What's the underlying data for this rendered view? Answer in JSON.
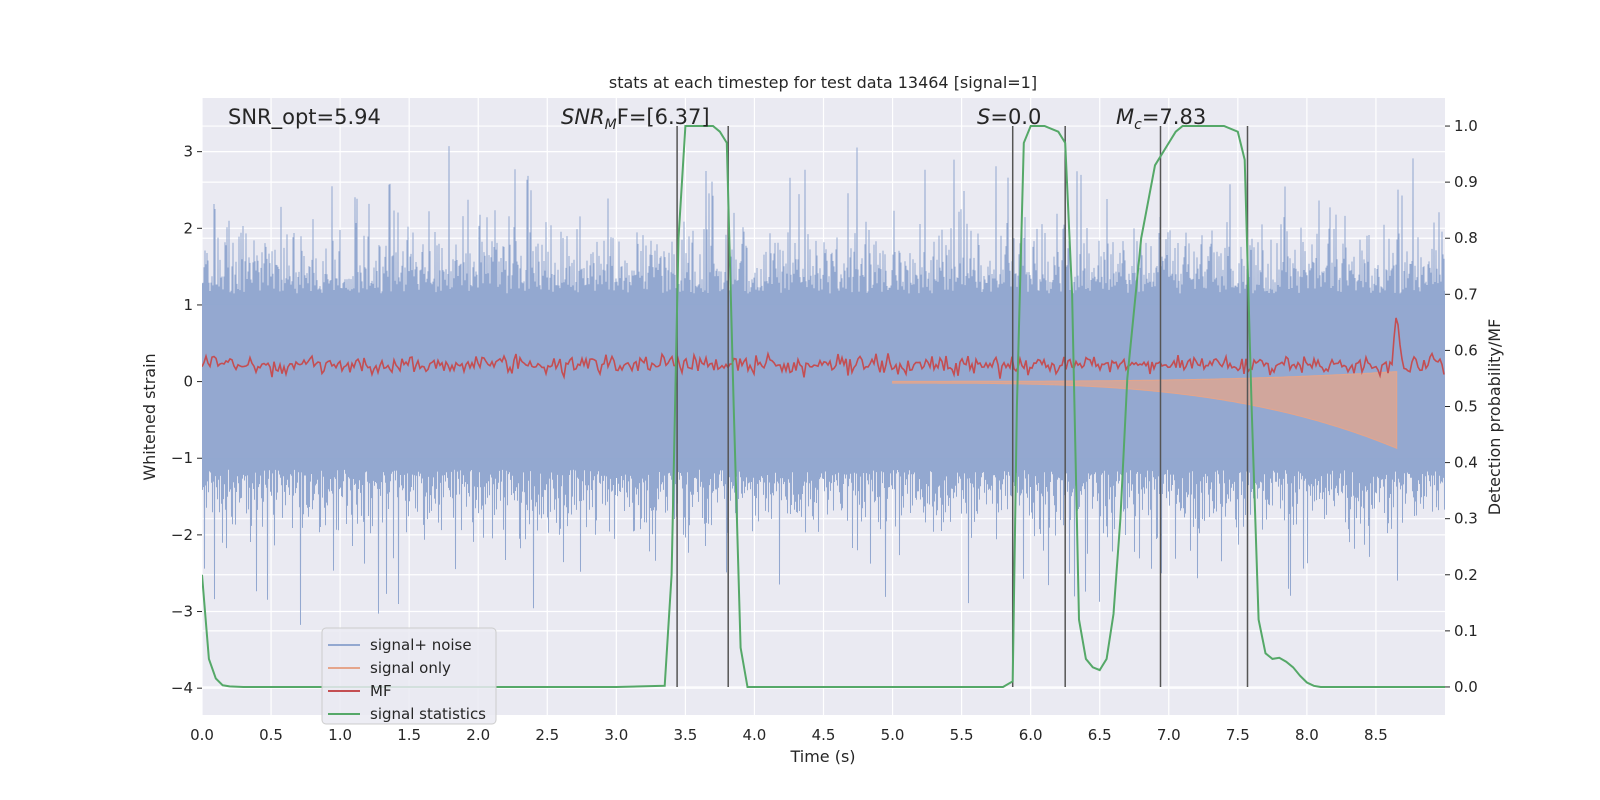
{
  "chart_data": {
    "type": "line",
    "title": "stats at each timestep for test data 13464 [signal=1]",
    "xlabel": "Time (s)",
    "ylabel_left": "Whitened strain",
    "ylabel_right": "Detection probability/MF",
    "xlim": [
      0.0,
      9.0
    ],
    "ylim_left": [
      -4.35,
      3.7
    ],
    "ylim_right": [
      -0.05,
      1.05
    ],
    "x_ticks": [
      "0.0",
      "0.5",
      "1.0",
      "1.5",
      "2.0",
      "2.5",
      "3.0",
      "3.5",
      "4.0",
      "4.5",
      "5.0",
      "5.5",
      "6.0",
      "6.5",
      "7.0",
      "7.5",
      "8.0",
      "8.5"
    ],
    "y_left_ticks": [
      "3",
      "2",
      "1",
      "0",
      "−1",
      "−2",
      "−3",
      "−4"
    ],
    "y_right_ticks": [
      "1.0",
      "0.9",
      "0.8",
      "0.7",
      "0.6",
      "0.5",
      "0.4",
      "0.3",
      "0.2",
      "0.1",
      "0.0"
    ],
    "grid": true,
    "annotations": [
      {
        "label": "SNR_opt=5.94",
        "x": 0.2
      },
      {
        "label": "SNR_MF=[6.37]",
        "x": 2.6
      },
      {
        "label": "S=0.0",
        "x": 5.6
      },
      {
        "label": "M_c=7.83",
        "x": 6.6
      }
    ],
    "annotation_texts": {
      "snr_opt": "SNR_opt=5.94",
      "snr_mf_main": "SNR",
      "snr_mf_sub": "M",
      "snr_mf_rest": "F=[6.37]",
      "s_main": "S",
      "s_rest": "=0.0",
      "mc_main": "M",
      "mc_sub": "c",
      "mc_rest": "=7.83"
    },
    "vertical_lines_x": [
      3.44,
      3.81,
      5.87,
      6.25,
      6.94,
      7.57
    ],
    "series": [
      {
        "name": "signal+ noise",
        "color": "#93a8d0",
        "axis": "left",
        "x_range": [
          0.0,
          9.0
        ],
        "description_values": {
          "typical_band": [
            -1.8,
            1.8
          ],
          "max": 3.35,
          "min": -4.0
        }
      },
      {
        "name": "signal only",
        "color": "#e5a58b",
        "axis": "left",
        "x_range": [
          5.0,
          8.65
        ],
        "description_values": {
          "peak_amplitude": 0.85
        }
      },
      {
        "name": "MF",
        "color": "#c44e52",
        "axis": "right",
        "x_range": [
          0.0,
          9.0
        ],
        "description_values": {
          "typical_band": [
            0.55,
            0.6
          ],
          "peak": {
            "x": 8.65,
            "y": 0.67
          }
        }
      },
      {
        "name": "signal statistics",
        "color": "#55a868",
        "axis": "right",
        "x": [
          0.0,
          0.05,
          0.1,
          0.15,
          0.2,
          0.3,
          0.5,
          1.0,
          2.0,
          3.0,
          3.35,
          3.4,
          3.45,
          3.5,
          3.6,
          3.7,
          3.75,
          3.8,
          3.85,
          3.9,
          3.95,
          4.5,
          5.0,
          5.8,
          5.87,
          5.9,
          5.95,
          6.0,
          6.05,
          6.1,
          6.2,
          6.25,
          6.3,
          6.35,
          6.4,
          6.45,
          6.5,
          6.55,
          6.6,
          6.65,
          6.7,
          6.8,
          6.9,
          7.0,
          7.05,
          7.1,
          7.2,
          7.4,
          7.5,
          7.55,
          7.6,
          7.65,
          7.7,
          7.75,
          7.8,
          7.85,
          7.9,
          7.95,
          8.0,
          8.05,
          8.1,
          8.2,
          8.5,
          9.0
        ],
        "values": [
          0.2,
          0.05,
          0.015,
          0.003,
          0.001,
          0.0,
          0.0,
          0.0,
          0.0,
          0.0,
          0.002,
          0.2,
          0.8,
          1.0,
          1.0,
          1.0,
          0.99,
          0.97,
          0.5,
          0.07,
          0.0,
          0.0,
          0.0,
          0.0,
          0.01,
          0.5,
          0.97,
          1.0,
          1.0,
          1.0,
          0.99,
          0.97,
          0.7,
          0.12,
          0.05,
          0.035,
          0.03,
          0.05,
          0.13,
          0.3,
          0.55,
          0.8,
          0.93,
          0.97,
          0.99,
          1.0,
          1.0,
          1.0,
          0.99,
          0.94,
          0.5,
          0.12,
          0.06,
          0.05,
          0.052,
          0.045,
          0.035,
          0.02,
          0.008,
          0.002,
          0.0,
          0.0,
          0.0,
          0.0
        ]
      }
    ]
  }
}
